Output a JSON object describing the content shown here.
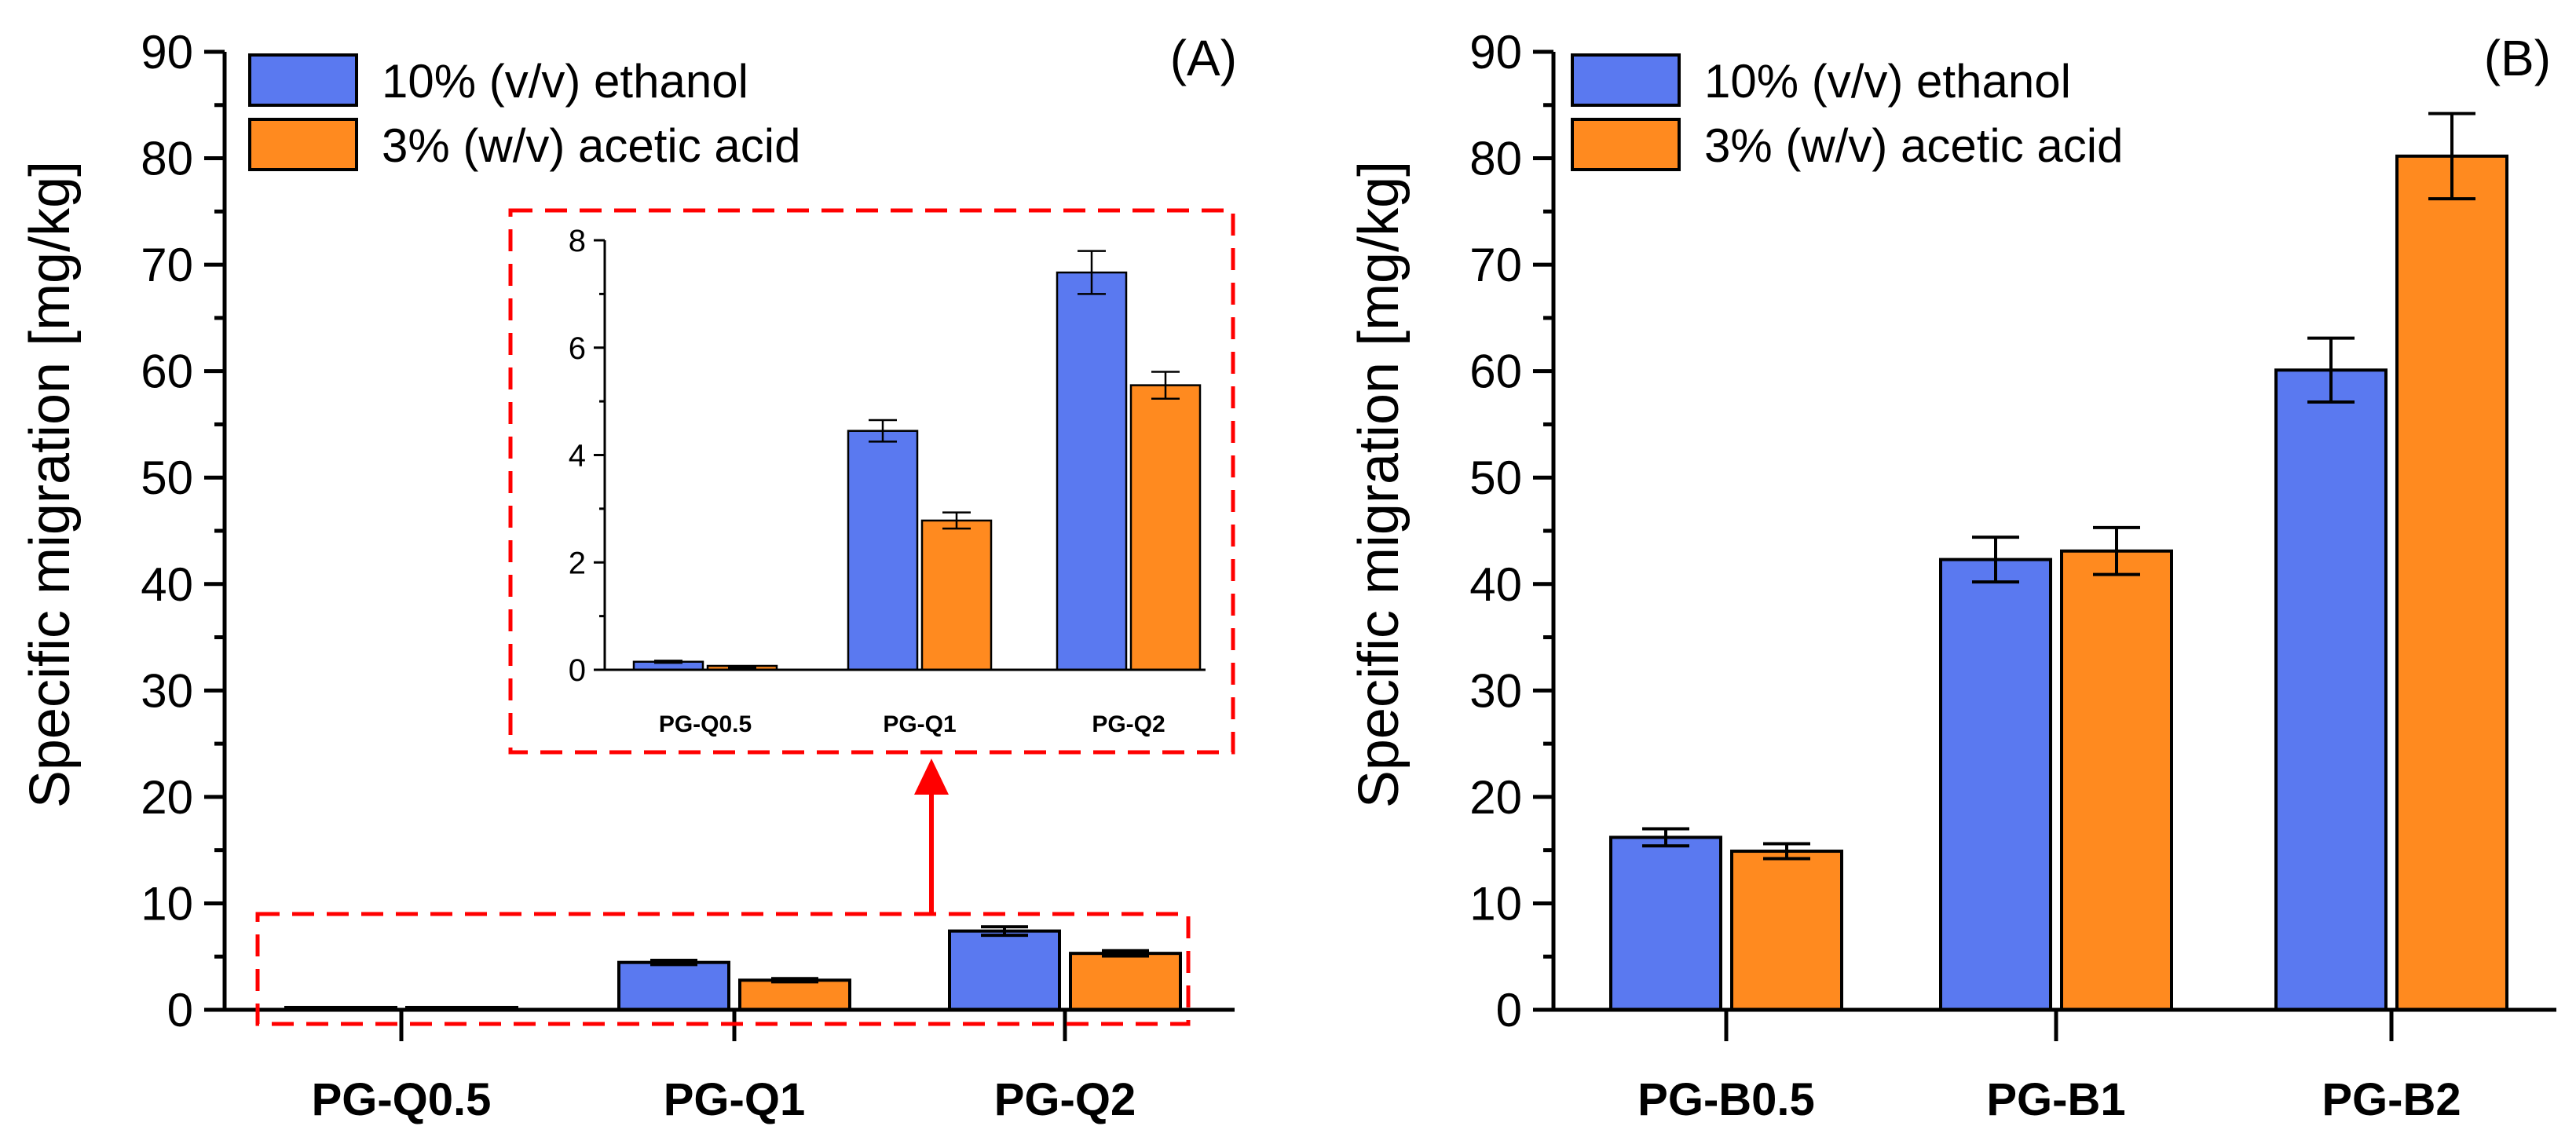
{
  "colors": {
    "ethanol": "#5a79f0",
    "acetic": "#ff8a1f",
    "highlight": "#ff0000"
  },
  "chart_data": [
    {
      "type": "bar",
      "panel": "(A)",
      "categories": [
        "PG-Q0.5",
        "PG-Q1",
        "PG-Q2"
      ],
      "ylabel": "Specific migration [mg/kg]",
      "ylim": [
        0,
        90
      ],
      "yticks": [
        "0",
        "10",
        "20",
        "30",
        "40",
        "50",
        "60",
        "70",
        "80",
        "90"
      ],
      "legend": [
        "10% (v/v) ethanol",
        "3% (w/v) acetic acid"
      ],
      "legend_position": "top-left",
      "series": [
        {
          "name": "10% (v/v) ethanol",
          "values": [
            0.15,
            4.45,
            7.4
          ],
          "errors": [
            0.02,
            0.2,
            0.4
          ]
        },
        {
          "name": "3% (w/v) acetic acid",
          "values": [
            0.05,
            2.78,
            5.3
          ],
          "errors": [
            0.01,
            0.15,
            0.25
          ]
        }
      ],
      "inset": {
        "categories": [
          "PG-Q0.5",
          "PG-Q1",
          "PG-Q2"
        ],
        "ylim": [
          0,
          8
        ],
        "yticks": [
          "0",
          "2",
          "4",
          "6",
          "8"
        ],
        "series": [
          {
            "name": "10% (v/v) ethanol",
            "values": [
              0.15,
              4.45,
              7.4
            ],
            "errors": [
              0.02,
              0.2,
              0.4
            ]
          },
          {
            "name": "3% (w/v) acetic acid",
            "values": [
              0.05,
              2.78,
              5.3
            ],
            "errors": [
              0.01,
              0.15,
              0.25
            ]
          }
        ]
      }
    },
    {
      "type": "bar",
      "panel": "(B)",
      "categories": [
        "PG-B0.5",
        "PG-B1",
        "PG-B2"
      ],
      "ylabel": "Specific migration [mg/kg]",
      "ylim": [
        0,
        90
      ],
      "yticks": [
        "0",
        "10",
        "20",
        "30",
        "40",
        "50",
        "60",
        "70",
        "80",
        "90"
      ],
      "legend": [
        "10% (v/v) ethanol",
        "3% (w/v) acetic acid"
      ],
      "legend_position": "top-left",
      "series": [
        {
          "name": "10% (v/v) ethanol",
          "values": [
            16.2,
            42.3,
            60.1
          ],
          "errors": [
            0.8,
            2.1,
            3.0
          ]
        },
        {
          "name": "3% (w/v) acetic acid",
          "values": [
            14.9,
            43.1,
            80.2
          ],
          "errors": [
            0.7,
            2.2,
            4.0
          ]
        }
      ]
    }
  ]
}
